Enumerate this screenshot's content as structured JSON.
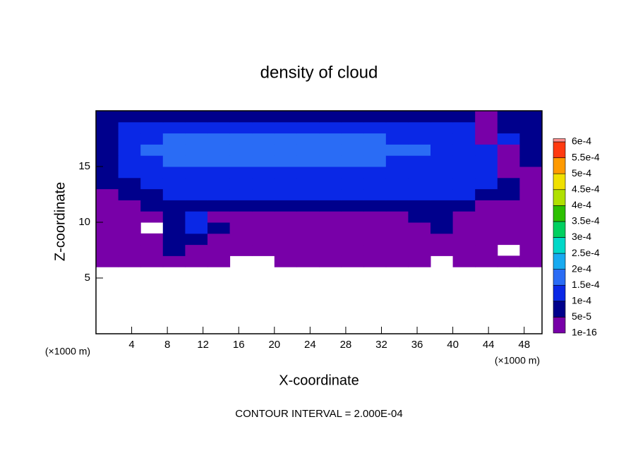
{
  "chart_data": {
    "type": "contour",
    "title": "density of cloud",
    "xlabel": "X-coordinate",
    "ylabel": "Z-coordinate",
    "x_unit_left": "(×1000 m)",
    "x_unit_right": "(×1000 m)",
    "note": "CONTOUR INTERVAL = 2.000E-04",
    "xlim": [
      0,
      50
    ],
    "ylim": [
      0,
      20
    ],
    "xticks": [
      4,
      8,
      12,
      16,
      20,
      24,
      28,
      32,
      36,
      40,
      44,
      48
    ],
    "yticks": [
      5,
      10,
      15
    ],
    "xbins": [
      0,
      2.5,
      5,
      7.5,
      10,
      12.5,
      15,
      17.5,
      20,
      22.5,
      25,
      27.5,
      30,
      32.5,
      35,
      37.5,
      40,
      42.5,
      45,
      47.5,
      50
    ],
    "zbins": [
      6,
      7,
      8,
      9,
      10,
      11,
      12,
      13,
      14,
      15,
      16,
      17,
      18,
      19,
      20
    ],
    "values": [
      [
        3e-05,
        3e-05,
        3e-05,
        3e-05,
        3e-05,
        3e-05,
        null,
        null,
        3e-05,
        3e-05,
        3e-05,
        3e-05,
        3e-05,
        3e-05,
        3e-05,
        null,
        3e-05,
        3e-05,
        3e-05,
        3e-05
      ],
      [
        3e-05,
        3e-05,
        3e-05,
        7e-05,
        3e-05,
        3e-05,
        3e-05,
        3e-05,
        3e-05,
        3e-05,
        3e-05,
        3e-05,
        3e-05,
        3e-05,
        3e-05,
        3e-05,
        3e-05,
        3e-05,
        null,
        3e-05
      ],
      [
        3e-05,
        3e-05,
        3e-05,
        7e-05,
        7e-05,
        3e-05,
        3e-05,
        3e-05,
        3e-05,
        3e-05,
        3e-05,
        3e-05,
        3e-05,
        3e-05,
        3e-05,
        3e-05,
        3e-05,
        3e-05,
        3e-05,
        3e-05
      ],
      [
        3e-05,
        3e-05,
        null,
        7e-05,
        0.00012,
        7e-05,
        3e-05,
        3e-05,
        3e-05,
        3e-05,
        3e-05,
        3e-05,
        3e-05,
        3e-05,
        3e-05,
        7e-05,
        3e-05,
        3e-05,
        3e-05,
        3e-05
      ],
      [
        3e-05,
        3e-05,
        3e-05,
        7e-05,
        0.00012,
        3e-05,
        3e-05,
        3e-05,
        3e-05,
        3e-05,
        3e-05,
        3e-05,
        3e-05,
        3e-05,
        7e-05,
        7e-05,
        3e-05,
        3e-05,
        3e-05,
        3e-05
      ],
      [
        3e-05,
        3e-05,
        7e-05,
        7e-05,
        7e-05,
        7e-05,
        7e-05,
        7e-05,
        7e-05,
        7e-05,
        7e-05,
        7e-05,
        7e-05,
        7e-05,
        7e-05,
        7e-05,
        7e-05,
        3e-05,
        3e-05,
        3e-05
      ],
      [
        3e-05,
        7e-05,
        7e-05,
        0.00012,
        0.00012,
        0.00012,
        0.00012,
        0.00012,
        0.00012,
        0.00012,
        0.00012,
        0.00012,
        0.00012,
        0.00012,
        0.00012,
        0.00012,
        0.00012,
        7e-05,
        7e-05,
        3e-05
      ],
      [
        7e-05,
        7e-05,
        0.00012,
        0.00012,
        0.00012,
        0.00012,
        0.00012,
        0.00012,
        0.00012,
        0.00012,
        0.00012,
        0.00012,
        0.00012,
        0.00012,
        0.00012,
        0.00012,
        0.00012,
        0.00012,
        7e-05,
        3e-05
      ],
      [
        7e-05,
        0.00012,
        0.00012,
        0.00012,
        0.00012,
        0.00012,
        0.00012,
        0.00012,
        0.00012,
        0.00012,
        0.00012,
        0.00012,
        0.00012,
        0.00012,
        0.00012,
        0.00012,
        0.00012,
        0.00012,
        3e-05,
        3e-05
      ],
      [
        7e-05,
        0.00012,
        0.00012,
        0.00016,
        0.00016,
        0.00016,
        0.00016,
        0.00016,
        0.00016,
        0.00016,
        0.00016,
        0.00016,
        0.00016,
        0.00012,
        0.00012,
        0.00012,
        0.00012,
        0.00012,
        3e-05,
        7e-05
      ],
      [
        7e-05,
        0.00012,
        0.00016,
        0.00016,
        0.00016,
        0.00016,
        0.00016,
        0.00016,
        0.00016,
        0.00016,
        0.00016,
        0.00016,
        0.00016,
        0.00016,
        0.00016,
        0.00012,
        0.00012,
        0.00012,
        3e-05,
        7e-05
      ],
      [
        7e-05,
        0.00012,
        0.00012,
        0.00016,
        0.00016,
        0.00016,
        0.00016,
        0.00016,
        0.00016,
        0.00016,
        0.00016,
        0.00016,
        0.00016,
        0.00012,
        0.00012,
        0.00012,
        0.00012,
        3e-05,
        0.00012,
        7e-05
      ],
      [
        7e-05,
        0.00012,
        0.00012,
        0.00012,
        0.00012,
        0.00012,
        0.00012,
        0.00012,
        0.00012,
        0.00012,
        0.00012,
        0.00012,
        0.00012,
        0.00012,
        0.00012,
        0.00012,
        0.00012,
        3e-05,
        7e-05,
        7e-05
      ],
      [
        7e-05,
        7e-05,
        7e-05,
        7e-05,
        7e-05,
        7e-05,
        7e-05,
        7e-05,
        7e-05,
        7e-05,
        7e-05,
        7e-05,
        7e-05,
        7e-05,
        7e-05,
        7e-05,
        7e-05,
        3e-05,
        7e-05,
        7e-05
      ]
    ],
    "levels": [
      {
        "value": 1e-16,
        "label": "1e-16"
      },
      {
        "value": 5e-05,
        "label": "5e-5"
      },
      {
        "value": 0.0001,
        "label": "1e-4"
      },
      {
        "value": 0.00015,
        "label": "1.5e-4"
      },
      {
        "value": 0.0002,
        "label": "2e-4"
      },
      {
        "value": 0.00025,
        "label": "2.5e-4"
      },
      {
        "value": 0.0003,
        "label": "3e-4"
      },
      {
        "value": 0.00035,
        "label": "3.5e-4"
      },
      {
        "value": 0.0004,
        "label": "4e-4"
      },
      {
        "value": 0.00045,
        "label": "4.5e-4"
      },
      {
        "value": 0.0005,
        "label": "5e-4"
      },
      {
        "value": 0.00055,
        "label": "5.5e-4"
      },
      {
        "value": 0.0006,
        "label": "6e-4"
      }
    ],
    "colors": [
      "#7800a8",
      "#00008c",
      "#0a28e6",
      "#2a6cf5",
      "#18aaf0",
      "#00d8c8",
      "#00d060",
      "#2cc000",
      "#b0e000",
      "#f0e000",
      "#ff9a00",
      "#ff3a10",
      "#ff9090"
    ]
  }
}
